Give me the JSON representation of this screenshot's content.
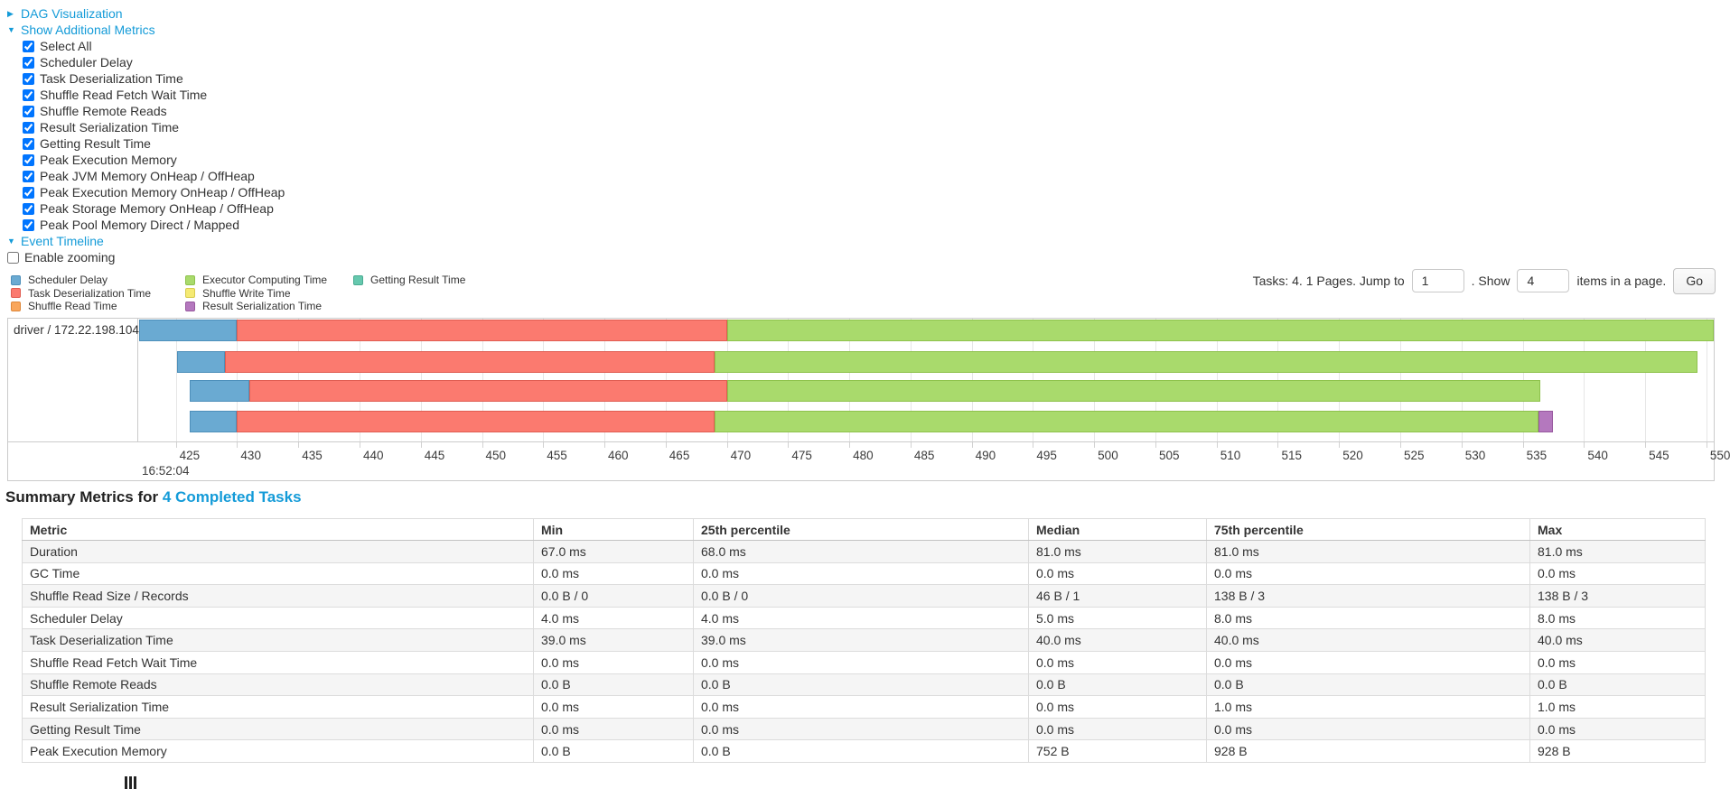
{
  "toggles": {
    "dag": {
      "label": "DAG Visualization",
      "state": "collapsed"
    },
    "metrics": {
      "label": "Show Additional Metrics",
      "state": "expanded"
    },
    "timeline": {
      "label": "Event Timeline",
      "state": "expanded"
    }
  },
  "metrics_menu": {
    "all_checked": true,
    "items": [
      "Select All",
      "Scheduler Delay",
      "Task Deserialization Time",
      "Shuffle Read Fetch Wait Time",
      "Shuffle Remote Reads",
      "Result Serialization Time",
      "Getting Result Time",
      "Peak Execution Memory",
      "Peak JVM Memory OnHeap / OffHeap",
      "Peak Execution Memory OnHeap / OffHeap",
      "Peak Storage Memory OnHeap / OffHeap",
      "Peak Pool Memory Direct / Mapped"
    ]
  },
  "enable_zooming_label": "Enable zooming",
  "legend": {
    "columns": [
      [
        {
          "label": "Scheduler Delay",
          "key": "scheduler_delay"
        },
        {
          "label": "Task Deserialization Time",
          "key": "task_deserialization"
        },
        {
          "label": "Shuffle Read Time",
          "key": "shuffle_read"
        }
      ],
      [
        {
          "label": "Executor Computing Time",
          "key": "executor_computing"
        },
        {
          "label": "Shuffle Write Time",
          "key": "shuffle_write"
        },
        {
          "label": "Result Serialization Time",
          "key": "result_serialization"
        }
      ],
      [
        {
          "label": "Getting Result Time",
          "key": "getting_result"
        }
      ]
    ]
  },
  "pagination": {
    "tasks_text": "Tasks: 4. 1 Pages. Jump to",
    "jump_value": "1",
    "mid_text": ". Show",
    "show_value": "4",
    "suffix_text": "items in a page.",
    "go_label": "Go"
  },
  "chart_data": {
    "type": "timeline",
    "group_label": "driver / 172.22.198.104",
    "axis": {
      "window_min": 422.0,
      "window_max": 550.6,
      "tick_start": 425,
      "tick_end": 550,
      "tick_step": 5,
      "start_time_label": "16:52:04"
    },
    "tasks": [
      {
        "segments": [
          [
            "scheduler_delay",
            422.0,
            430.0
          ],
          [
            "task_deserialization",
            430.0,
            470.0
          ],
          [
            "executor_computing",
            470.0,
            550.6
          ]
        ]
      },
      {
        "segments": [
          [
            "scheduler_delay",
            425.1,
            429.0
          ],
          [
            "task_deserialization",
            429.0,
            469.0
          ],
          [
            "executor_computing",
            469.0,
            549.3
          ]
        ]
      },
      {
        "segments": [
          [
            "scheduler_delay",
            426.1,
            431.0
          ],
          [
            "task_deserialization",
            431.0,
            470.0
          ],
          [
            "executor_computing",
            470.0,
            536.4
          ]
        ]
      },
      {
        "segments": [
          [
            "scheduler_delay",
            426.1,
            430.0
          ],
          [
            "task_deserialization",
            430.0,
            469.0
          ],
          [
            "executor_computing",
            469.0,
            536.3
          ],
          [
            "result_serialization",
            536.3,
            537.5
          ]
        ]
      }
    ]
  },
  "summary": {
    "title_prefix": "Summary Metrics for",
    "title_link": "4 Completed Tasks",
    "columns": [
      "Metric",
      "Min",
      "25th percentile",
      "Median",
      "75th percentile",
      "Max"
    ],
    "rows": [
      [
        "Duration",
        "67.0 ms",
        "68.0 ms",
        "81.0 ms",
        "81.0 ms",
        "81.0 ms"
      ],
      [
        "GC Time",
        "0.0 ms",
        "0.0 ms",
        "0.0 ms",
        "0.0 ms",
        "0.0 ms"
      ],
      [
        "Shuffle Read Size / Records",
        "0.0 B / 0",
        "0.0 B / 0",
        "46 B / 1",
        "138 B / 3",
        "138 B / 3"
      ],
      [
        "Scheduler Delay",
        "4.0 ms",
        "4.0 ms",
        "5.0 ms",
        "8.0 ms",
        "8.0 ms"
      ],
      [
        "Task Deserialization Time",
        "39.0 ms",
        "39.0 ms",
        "40.0 ms",
        "40.0 ms",
        "40.0 ms"
      ],
      [
        "Shuffle Read Fetch Wait Time",
        "0.0 ms",
        "0.0 ms",
        "0.0 ms",
        "0.0 ms",
        "0.0 ms"
      ],
      [
        "Shuffle Remote Reads",
        "0.0 B",
        "0.0 B",
        "0.0 B",
        "0.0 B",
        "0.0 B"
      ],
      [
        "Result Serialization Time",
        "0.0 ms",
        "0.0 ms",
        "0.0 ms",
        "1.0 ms",
        "1.0 ms"
      ],
      [
        "Getting Result Time",
        "0.0 ms",
        "0.0 ms",
        "0.0 ms",
        "0.0 ms",
        "0.0 ms"
      ],
      [
        "Peak Execution Memory",
        "0.0 B",
        "0.0 B",
        "752 B",
        "928 B",
        "928 B"
      ]
    ]
  },
  "colors": {
    "link": "#149bd8",
    "scheduler_delay": "#6aaad2",
    "scheduler_delay_border": "#4d8fba",
    "task_deserialization": "#fb7a6f",
    "task_deserialization_border": "#e05d52",
    "shuffle_read": "#f9a65b",
    "shuffle_read_border": "#de883c",
    "executor_computing": "#a9da6c",
    "executor_computing_border": "#8ec24c",
    "shuffle_write": "#f5ea73",
    "shuffle_write_border": "#d8cc50",
    "result_serialization": "#b478be",
    "result_serialization_border": "#98599f",
    "getting_result": "#66c8ae",
    "getting_result_border": "#49ab91"
  }
}
